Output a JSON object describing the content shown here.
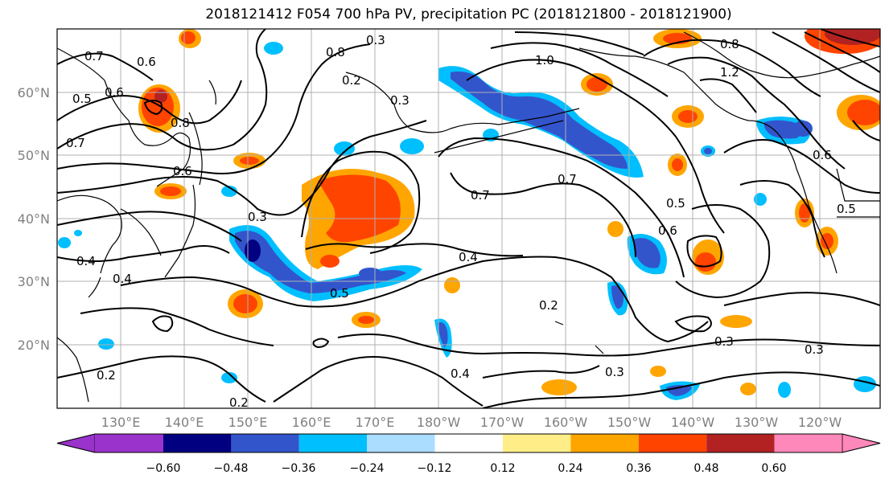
{
  "title": "2018121412 F054 700 hPa PV, precipitation PC (2018121800 - 2018121900)",
  "lat_labels": [
    "60°N",
    "50°N",
    "40°N",
    "30°N",
    "20°N"
  ],
  "lon_labels": [
    "130°E",
    "140°E",
    "150°E",
    "160°E",
    "170°E",
    "180°W",
    "170°W",
    "160°W",
    "150°W",
    "140°W",
    "130°W",
    "120°W"
  ],
  "contour_labels": [
    "0.7",
    "0.6",
    "0.5",
    "0.6",
    "0.7",
    "0.8",
    "0.6",
    "0.3",
    "0.4",
    "0.4",
    "0.2",
    "0.3",
    "0.5",
    "0.8",
    "0.3",
    "1.0",
    "0.7",
    "0.7",
    "0.5",
    "0.6",
    "0.4",
    "0.2",
    "0.4",
    "0.3",
    "0.3",
    "0.3",
    "0.2",
    "0.2",
    "0.5",
    "0.6",
    "0.8",
    "1.2"
  ],
  "colorbar": {
    "tick_labels": [
      "−0.60",
      "−0.48",
      "−0.36",
      "−0.24",
      "−0.12",
      "0.12",
      "0.24",
      "0.36",
      "0.48",
      "0.60"
    ],
    "colors": [
      "#9933cc",
      "#000080",
      "#3355cc",
      "#00bfff",
      "#aaddff",
      "#ffffff",
      "#ffee88",
      "#ffa500",
      "#ff4400",
      "#b22222",
      "#ff88bb"
    ]
  }
}
